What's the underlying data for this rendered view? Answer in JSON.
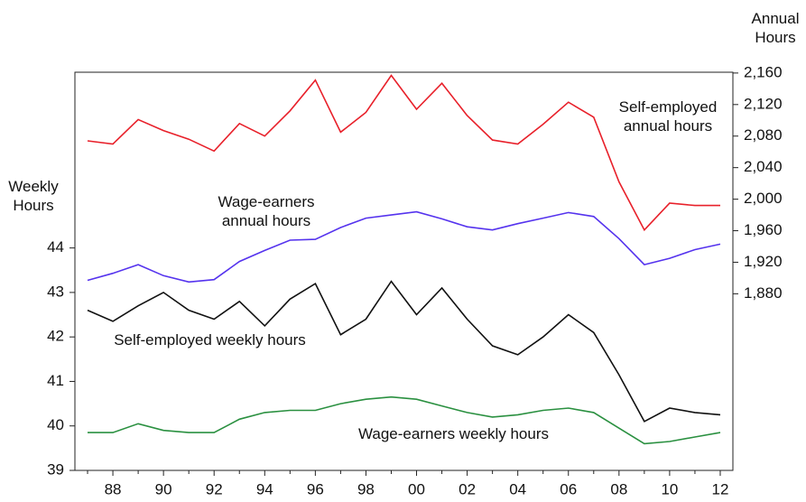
{
  "chart_data": {
    "type": "line",
    "ylabel": "Weekly Hours",
    "y2label": "Annual Hours",
    "categories": [
      null,
      "88",
      null,
      "90",
      null,
      "92",
      null,
      "94",
      null,
      "96",
      null,
      "98",
      null,
      "00",
      null,
      "02",
      null,
      "04",
      null,
      "06",
      null,
      "08",
      null,
      "10",
      null,
      "12"
    ],
    "ylim": [
      39,
      47.95
    ],
    "yticks": [
      39,
      40,
      41,
      42,
      43,
      44
    ],
    "y2lim": [
      1656,
      2161
    ],
    "y2ticks": [
      {
        "value": 1880,
        "label": "1,880"
      },
      {
        "value": 1920,
        "label": "1,920"
      },
      {
        "value": 1960,
        "label": "1,960"
      },
      {
        "value": 2000,
        "label": "2,000"
      },
      {
        "value": 2040,
        "label": "2,040"
      },
      {
        "value": 2080,
        "label": "2,080"
      },
      {
        "value": 2120,
        "label": "2,120"
      },
      {
        "value": 2160,
        "label": "2,160"
      }
    ],
    "series": [
      {
        "name": "Self-employed annual hours",
        "color": "#e8202a",
        "axis": "y2",
        "values": [
          2074,
          2070,
          2101,
          2087,
          2076,
          2061,
          2096,
          2080,
          2112,
          2151,
          2085,
          2110,
          2157,
          2114,
          2147,
          2106,
          2075,
          2070,
          2095,
          2123,
          2104,
          2022,
          1961,
          1995,
          1992,
          1992
        ]
      },
      {
        "name": "Wage-earners annual hours",
        "color": "#5533ee",
        "axis": "y2",
        "values": [
          1897,
          1906,
          1917,
          1903,
          1895,
          1898,
          1921,
          1935,
          1948,
          1949,
          1964,
          1976,
          1980,
          1984,
          1975,
          1965,
          1961,
          1969,
          1976,
          1983,
          1978,
          1950,
          1917,
          1925,
          1936,
          1943
        ]
      },
      {
        "name": "Self-employed weekly hours",
        "color": "#111111",
        "values": [
          42.6,
          42.35,
          42.7,
          43.0,
          42.6,
          42.4,
          42.8,
          42.25,
          42.85,
          43.2,
          42.05,
          42.4,
          43.25,
          42.5,
          43.1,
          42.4,
          41.8,
          41.6,
          42.0,
          42.5,
          42.1,
          41.15,
          40.1,
          40.4,
          40.3,
          40.25
        ]
      },
      {
        "name": "Wage-earners weekly hours",
        "color": "#2a9040",
        "values": [
          39.85,
          39.85,
          40.05,
          39.9,
          39.85,
          39.85,
          40.15,
          40.3,
          40.35,
          40.35,
          40.5,
          40.6,
          40.65,
          40.6,
          40.45,
          40.3,
          40.2,
          40.25,
          40.35,
          40.4,
          40.3,
          39.95,
          39.6,
          39.65,
          39.75,
          39.85
        ]
      }
    ]
  }
}
